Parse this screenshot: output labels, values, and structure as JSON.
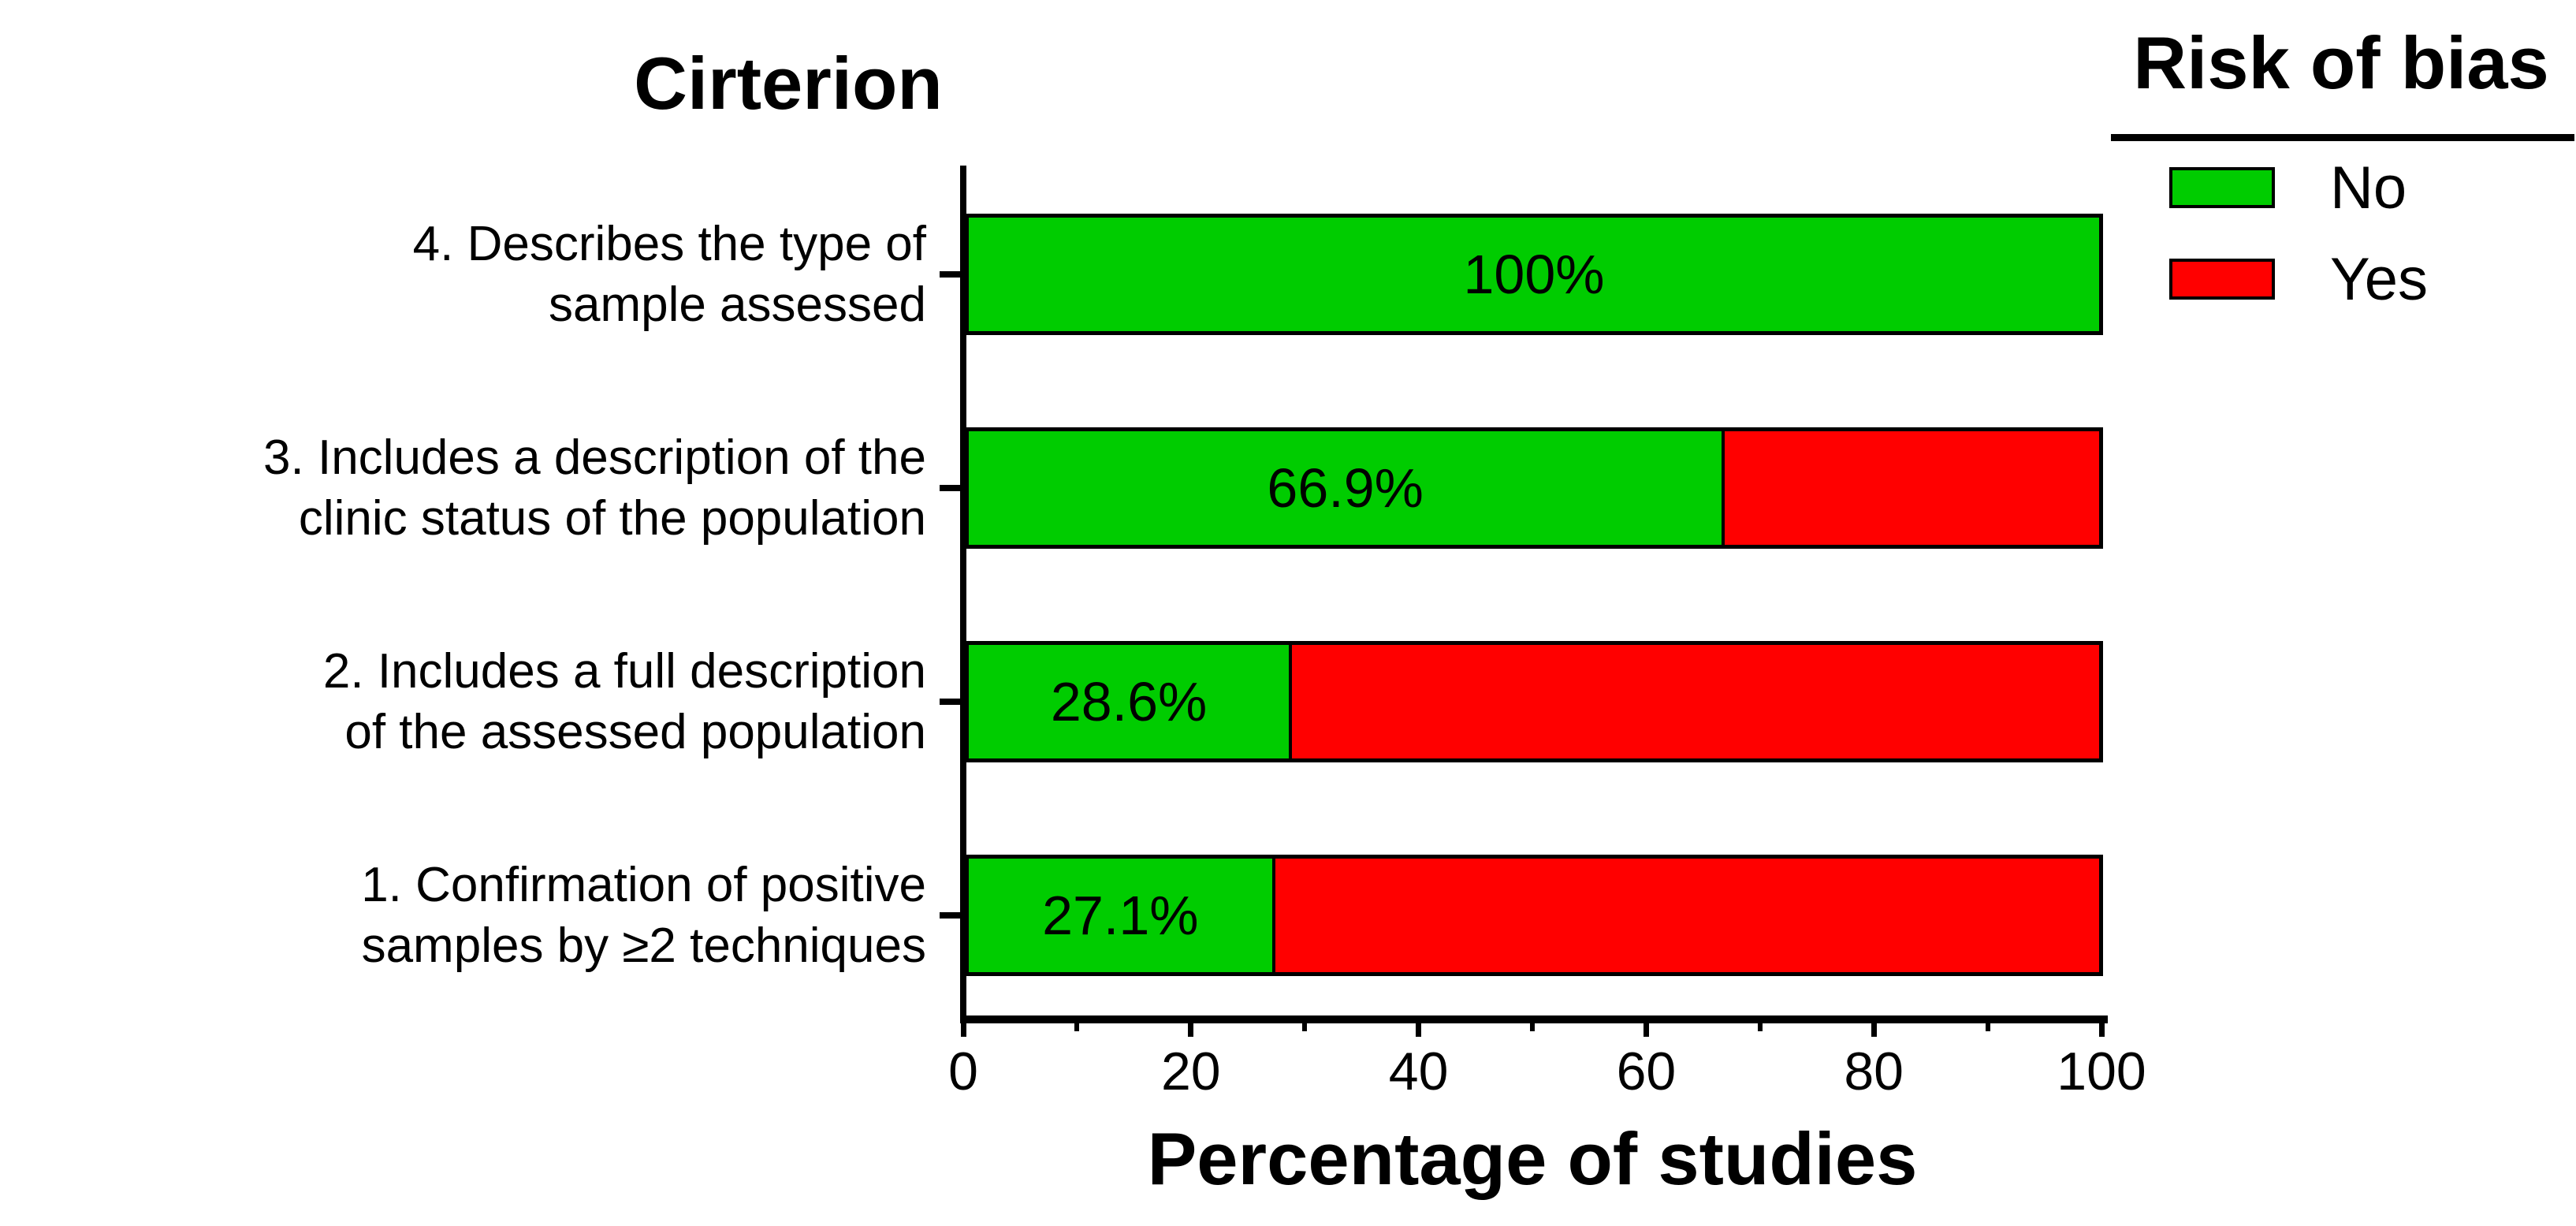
{
  "chart_data": {
    "type": "bar",
    "orientation": "horizontal",
    "stacked": true,
    "title": "Cirterion",
    "xlabel": "Percentage of studies",
    "xlim": [
      0,
      100
    ],
    "x_major_ticks": [
      0,
      20,
      40,
      60,
      80,
      100
    ],
    "x_minor_ticks": [
      10,
      30,
      50,
      70,
      90
    ],
    "grid": false,
    "categories": [
      "4. Describes the type of\nsample assessed",
      "3. Includes a description of the\nclinic status of the population",
      "2. Includes a full description\nof the assessed population",
      "1. Confirmation of positive\nsamples by ≥2 techniques"
    ],
    "series": [
      {
        "name": "No",
        "color": "#00cc00",
        "values": [
          100,
          66.9,
          28.6,
          27.1
        ]
      },
      {
        "name": "Yes",
        "color": "#ff0000",
        "values": [
          0,
          33.1,
          71.4,
          72.9
        ]
      }
    ],
    "value_labels": [
      "100%",
      "66.9%",
      "28.6%",
      "27.1%"
    ],
    "legend": {
      "title": "Risk of bias",
      "position": "top-right",
      "entries": [
        {
          "label": "No",
          "color": "#00cc00"
        },
        {
          "label": "Yes",
          "color": "#ff0000"
        }
      ]
    }
  }
}
